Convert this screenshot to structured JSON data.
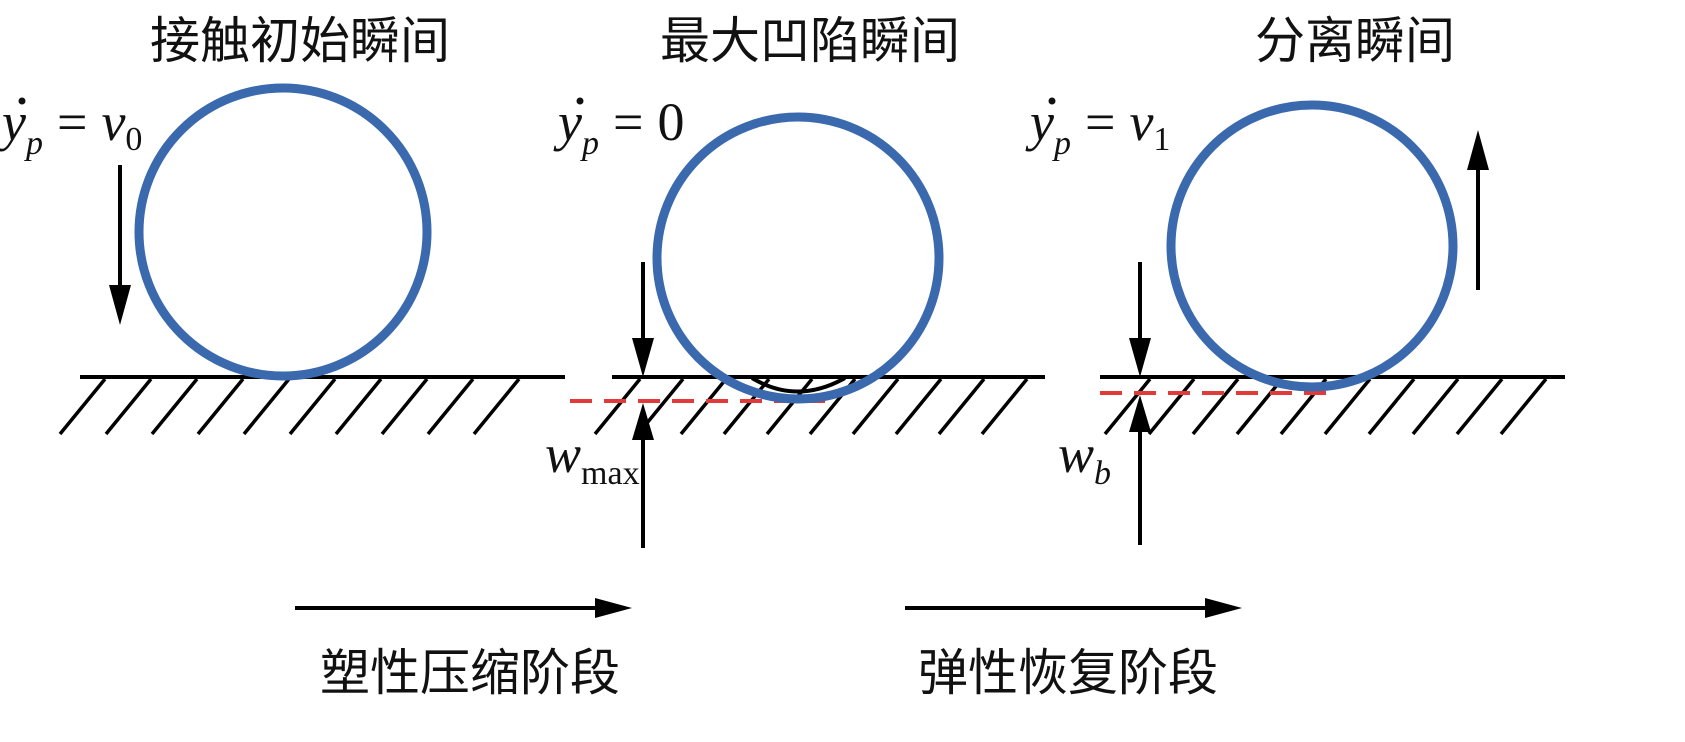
{
  "panels": [
    {
      "title": "接触初始瞬间",
      "velocity": {
        "var": "y",
        "sub": "p",
        "eq": "=",
        "rhs": "v",
        "rhs_sub": "0"
      }
    },
    {
      "title": "最大凹陷瞬间",
      "velocity": {
        "var": "y",
        "sub": "p",
        "eq": "=",
        "rhs": "0",
        "rhs_sub": ""
      },
      "depth": {
        "var": "w",
        "sub": "max"
      }
    },
    {
      "title": "分离瞬间",
      "velocity": {
        "var": "y",
        "sub": "p",
        "eq": "=",
        "rhs": "v",
        "rhs_sub": "1"
      },
      "depth": {
        "var": "w",
        "sub": "b"
      }
    }
  ],
  "stages": [
    "塑性压缩阶段",
    "弹性恢复阶段"
  ],
  "colors": {
    "ball": "#3a69ad",
    "dashed": "#e03a3a",
    "ink": "#000000"
  }
}
